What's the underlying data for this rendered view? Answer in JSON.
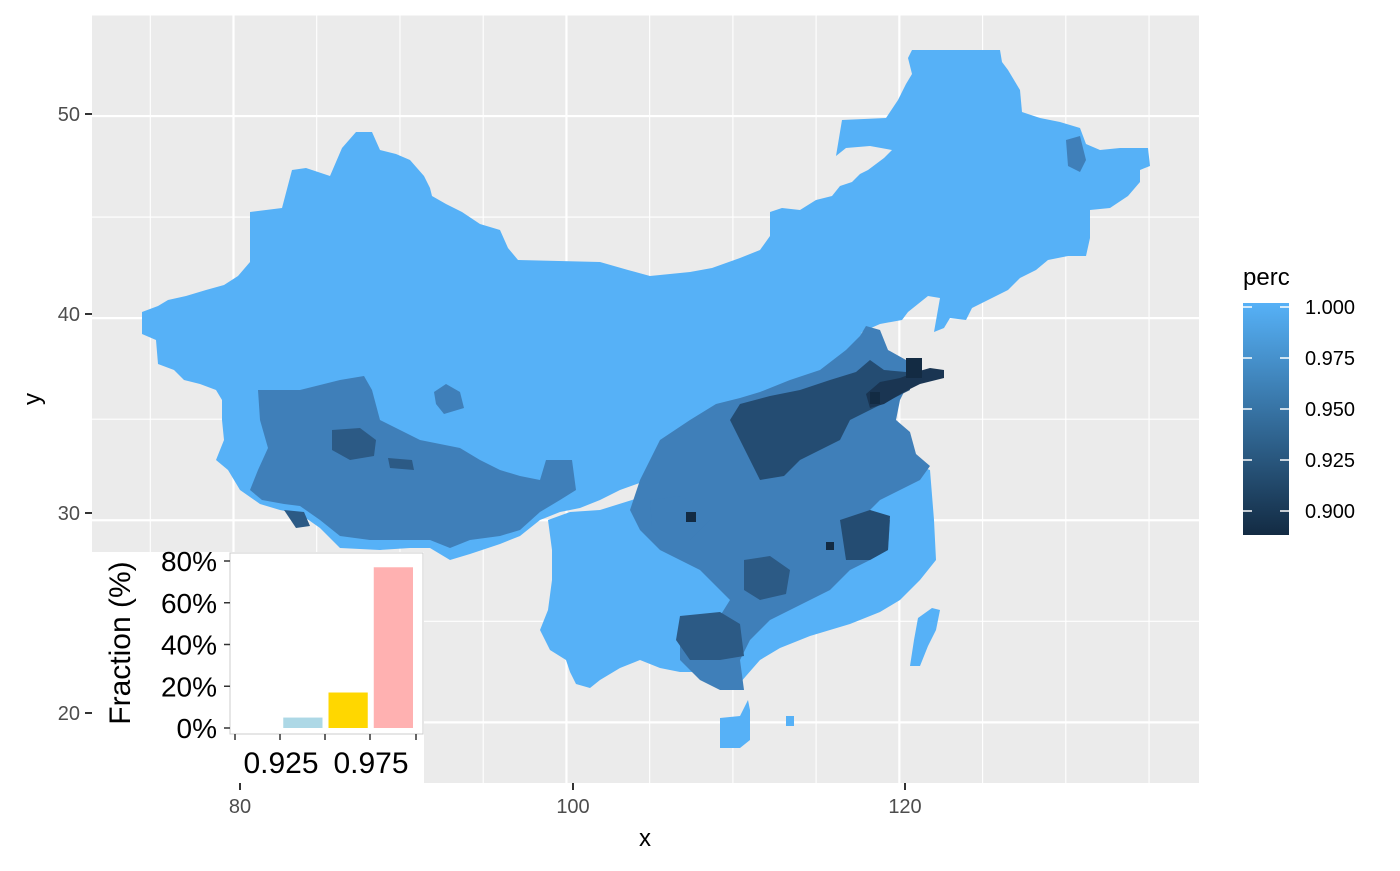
{
  "map": {
    "x_axis_title": "x",
    "y_axis_title": "y",
    "x_ticks": [
      "80",
      "100",
      "120"
    ],
    "y_ticks": [
      "20",
      "30",
      "40",
      "50"
    ],
    "x_range": [
      71.5,
      138
    ],
    "y_range": [
      17,
      55
    ],
    "region": "China",
    "panel_color": "#EBEBEB",
    "grid_color": "#FFFFFF"
  },
  "legend": {
    "title": "perc",
    "labels": [
      "1.000",
      "0.975",
      "0.950",
      "0.925",
      "0.900"
    ],
    "colors": [
      "#56B1F7",
      "#132B43"
    ],
    "range": [
      0.89,
      1.0
    ]
  },
  "chart_data": {
    "type": "bar",
    "ylabel": "Fraction (%)",
    "xlabel": "",
    "y_tick_labels": [
      "0%",
      "20%",
      "40%",
      "60%",
      "80%"
    ],
    "x_tick_labels": [
      "0.925",
      "0.975"
    ],
    "categories": [
      "0.90-0.925",
      "0.925-0.95",
      "0.95-0.975",
      "0.975-1.00"
    ],
    "values": [
      0,
      0.05,
      0.17,
      0.77
    ],
    "bar_colors": [
      "#ADD8E6",
      "#ADD8E6",
      "#FFD700",
      "#FFB1B1"
    ],
    "ylim": [
      0,
      0.8
    ]
  }
}
